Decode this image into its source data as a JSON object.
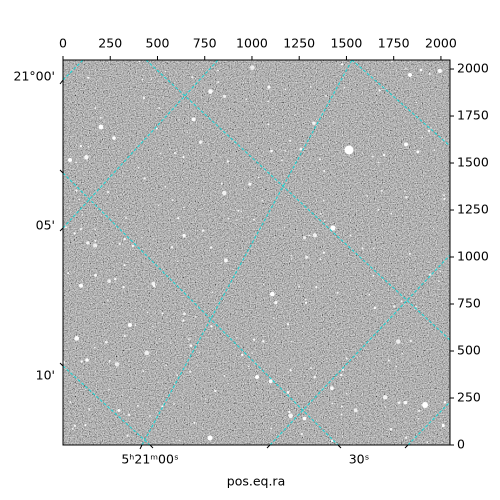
{
  "chart_data": {
    "type": "image",
    "x_label": "pos.eq.ra",
    "xlim": [
      0,
      2048
    ],
    "xticks": [
      0,
      250,
      500,
      750,
      1000,
      1250,
      1500,
      1750,
      2000
    ],
    "ylim": [
      0,
      2048
    ],
    "yticks": [
      0,
      250,
      500,
      750,
      1000,
      1250,
      1500,
      1750,
      2000
    ],
    "ra_tick_labels": [
      "5ʰ21ᵐ00ˢ",
      "30ˢ"
    ],
    "dec_tick_labels": [
      "21°00'",
      "05'",
      "10'"
    ]
  }
}
